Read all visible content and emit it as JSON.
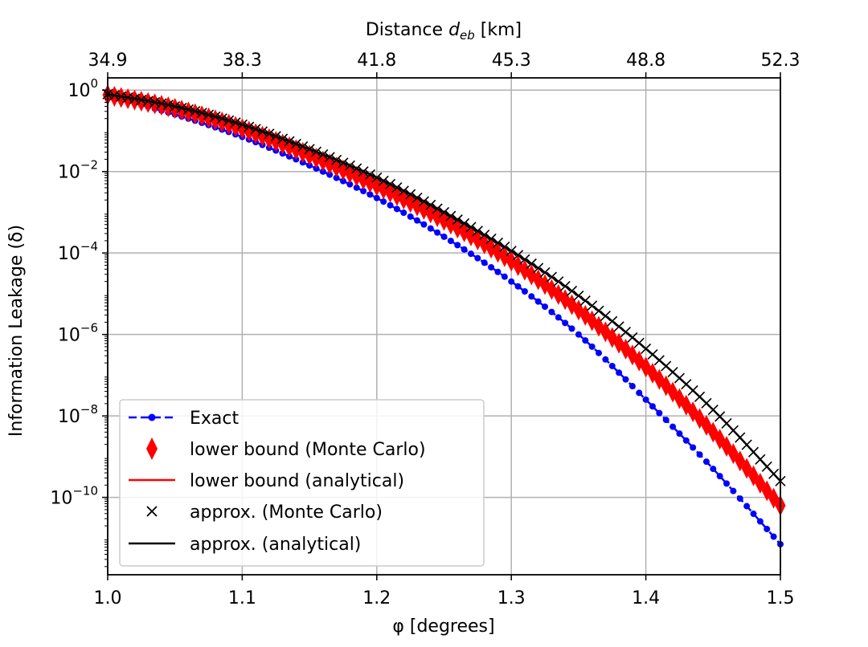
{
  "chart_data": {
    "type": "scatter",
    "yscale": "log",
    "xlabel": "φ [degrees]",
    "ylabel": "Information Leakage (δ)",
    "x2label": "Distance d_eb [km]",
    "x2label_main": "Distance ",
    "x2label_var": "d",
    "x2label_sub": "eb",
    "x2label_unit": " [km]",
    "xlim": [
      1.0,
      1.5
    ],
    "ylim_log10": [
      -11.9,
      0.3
    ],
    "xticks": [
      "1.0",
      "1.1",
      "1.2",
      "1.3",
      "1.4",
      "1.5"
    ],
    "x2ticks": [
      "34.9",
      "38.3",
      "41.8",
      "45.3",
      "48.8",
      "52.3"
    ],
    "yticks": [
      {
        "base": "10",
        "exp": "0",
        "value": 0
      },
      {
        "base": "10",
        "exp": "−2",
        "value": -2
      },
      {
        "base": "10",
        "exp": "−4",
        "value": -4
      },
      {
        "base": "10",
        "exp": "−6",
        "value": -6
      },
      {
        "base": "10",
        "exp": "−8",
        "value": -8
      },
      {
        "base": "10",
        "exp": "−10",
        "value": -10
      }
    ],
    "grid": true,
    "legend_position": "lower-left",
    "series": [
      {
        "name": "Exact",
        "style": "dashed-circle",
        "color": "#0000ff",
        "x": [
          1.0,
          1.05,
          1.1,
          1.15,
          1.2,
          1.25,
          1.3,
          1.35,
          1.4,
          1.45,
          1.5
        ],
        "log10_y": [
          -0.15,
          -0.6,
          -1.15,
          -1.85,
          -2.65,
          -3.6,
          -4.7,
          -6.0,
          -7.6,
          -9.3,
          -11.15
        ]
      },
      {
        "name": "lower bound (Monte Carlo)",
        "style": "diamond",
        "color": "#ff0000",
        "x": [
          1.0,
          1.05,
          1.1,
          1.15,
          1.2,
          1.25,
          1.3,
          1.35,
          1.4,
          1.45,
          1.5
        ],
        "log10_y": [
          -0.12,
          -0.45,
          -0.95,
          -1.6,
          -2.35,
          -3.2,
          -4.2,
          -5.4,
          -6.8,
          -8.4,
          -10.2
        ]
      },
      {
        "name": "lower bound (analytical)",
        "style": "line",
        "color": "#ff0000",
        "x": [
          1.0,
          1.05,
          1.1,
          1.15,
          1.2,
          1.25,
          1.3,
          1.35,
          1.4,
          1.45,
          1.5
        ],
        "log10_y": [
          -0.12,
          -0.45,
          -0.95,
          -1.6,
          -2.35,
          -3.2,
          -4.2,
          -5.4,
          -6.8,
          -8.4,
          -10.2
        ]
      },
      {
        "name": "approx. (Monte Carlo)",
        "style": "x",
        "color": "#000000",
        "x": [
          1.0,
          1.05,
          1.1,
          1.15,
          1.2,
          1.25,
          1.3,
          1.35,
          1.4,
          1.45,
          1.5
        ],
        "log10_y": [
          -0.1,
          -0.4,
          -0.85,
          -1.45,
          -2.15,
          -3.0,
          -3.95,
          -5.05,
          -6.35,
          -7.85,
          -9.6
        ]
      },
      {
        "name": "approx. (analytical)",
        "style": "line",
        "color": "#000000",
        "x": [
          1.0,
          1.05,
          1.1,
          1.15,
          1.2,
          1.25,
          1.3,
          1.35,
          1.4,
          1.45,
          1.5
        ],
        "log10_y": [
          -0.1,
          -0.4,
          -0.85,
          -1.45,
          -2.15,
          -3.0,
          -3.95,
          -5.05,
          -6.35,
          -7.85,
          -9.6
        ]
      }
    ]
  }
}
